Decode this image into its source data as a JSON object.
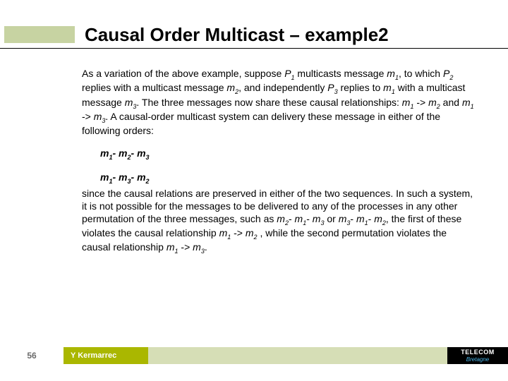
{
  "header": {
    "title": "Causal Order Multicast – example2"
  },
  "body": {
    "p1_pre": " As a variation of the above example, suppose ",
    "P1": "P",
    "P1s": "1",
    "p1_a": " multicasts message ",
    "m1": "m",
    "m1s": "1",
    "p1_b": ", to which ",
    "P2": "P",
    "P2s": "2",
    "p1_c": " replies with a multicast message ",
    "m2": "m",
    "m2s": "2",
    "p1_d": ", and independently ",
    "P3": "P",
    "P3s": "3",
    "p1_e": " replies to ",
    "p1_f": " with a multicast message ",
    "m3": "m",
    "m3s": "3",
    "p1_g": ".  The three messages now share these causal relationships: ",
    "p1_h": " -> ",
    "p1_i": " and ",
    "p1_j": ".  A causal-order multicast system can delivery these message in either of the following orders:",
    "ord1_a": "m",
    "ord1_as": "1",
    "dash": "- ",
    "ord1_b": "m",
    "ord1_bs": "2",
    "ord1_c": "m",
    "ord1_cs": "3",
    "ord2_a": "m",
    "ord2_as": "1",
    "ord2_b": "m",
    "ord2_bs": "3",
    "ord2_c": "m",
    "ord2_cs": "2",
    "p2_a": "since the causal relations are preserved in either of the two sequences.  In such a system, it is not possible for the messages to be delivered to any of the processes in any other permutation of the three messages, such as ",
    "p2_b": " or ",
    "p2_c": ", the first of these violates the causal relationship ",
    "p2_d": " , while the second permutation violates the causal relationship ",
    "p2_e": "."
  },
  "footer": {
    "page": "56",
    "author": "Y Kermarrec",
    "logo_top": "TELECOM",
    "logo_bottom": "Bretagne"
  },
  "colors": {
    "accent": "#aab700",
    "accent_light": "#d6deb6",
    "deco": "#c7d3a2",
    "logo_blue": "#4ab4e6"
  }
}
